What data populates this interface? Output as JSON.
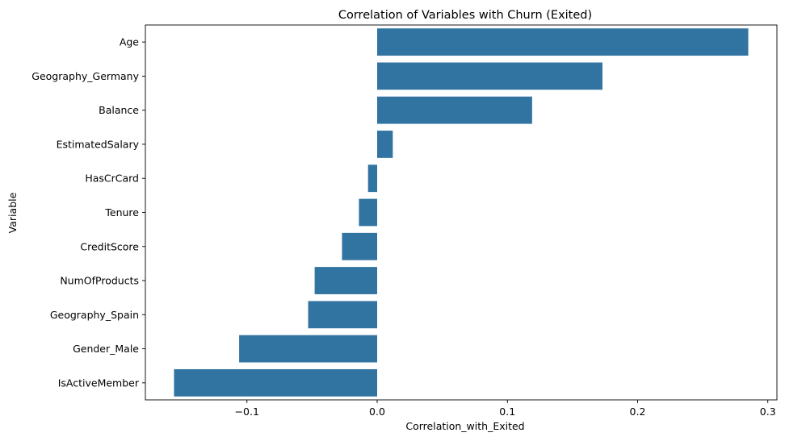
{
  "chart_data": {
    "type": "bar",
    "orientation": "horizontal",
    "title": "Correlation of Variables with Churn (Exited)",
    "xlabel": "Correlation_with_Exited",
    "ylabel": "Variable",
    "categories": [
      "Age",
      "Geography_Germany",
      "Balance",
      "EstimatedSalary",
      "HasCrCard",
      "Tenure",
      "CreditScore",
      "NumOfProducts",
      "Geography_Spain",
      "Gender_Male",
      "IsActiveMember"
    ],
    "values": [
      0.285,
      0.173,
      0.119,
      0.012,
      -0.007,
      -0.014,
      -0.027,
      -0.048,
      -0.053,
      -0.106,
      -0.156
    ],
    "xlim": [
      -0.178,
      0.307
    ],
    "xticks": [
      -0.1,
      0.0,
      0.1,
      0.2,
      0.3
    ],
    "xtick_labels": [
      "−0.1",
      "0.0",
      "0.1",
      "0.2",
      "0.3"
    ],
    "bar_color": "#3274a1",
    "grid": false,
    "legend": "none"
  }
}
